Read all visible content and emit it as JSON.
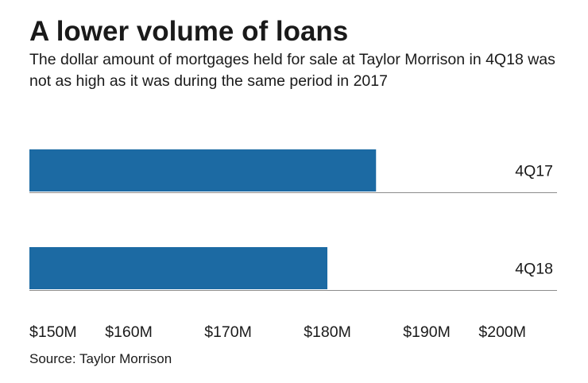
{
  "header": {
    "title": "A lower volume of loans",
    "subtitle": "The dollar amount of mortgages held for sale at Taylor Morrison in 4Q18 was not as high as it was during the same period in 2017"
  },
  "footer": {
    "source": "Source: Taylor Morrison"
  },
  "chart_data": {
    "type": "bar",
    "orientation": "horizontal",
    "categories": [
      "4Q17",
      "4Q18"
    ],
    "values": [
      184.9,
      180.0
    ],
    "unit": "$M",
    "xlim": [
      150,
      200
    ],
    "ticks": [
      150,
      160,
      170,
      180,
      190,
      200
    ],
    "tick_labels": [
      "$150M",
      "$160M",
      "$170M",
      "$180M",
      "$190M",
      "$200M"
    ],
    "bar_color": "#1c6aa3",
    "grid": false,
    "legend": "none"
  }
}
